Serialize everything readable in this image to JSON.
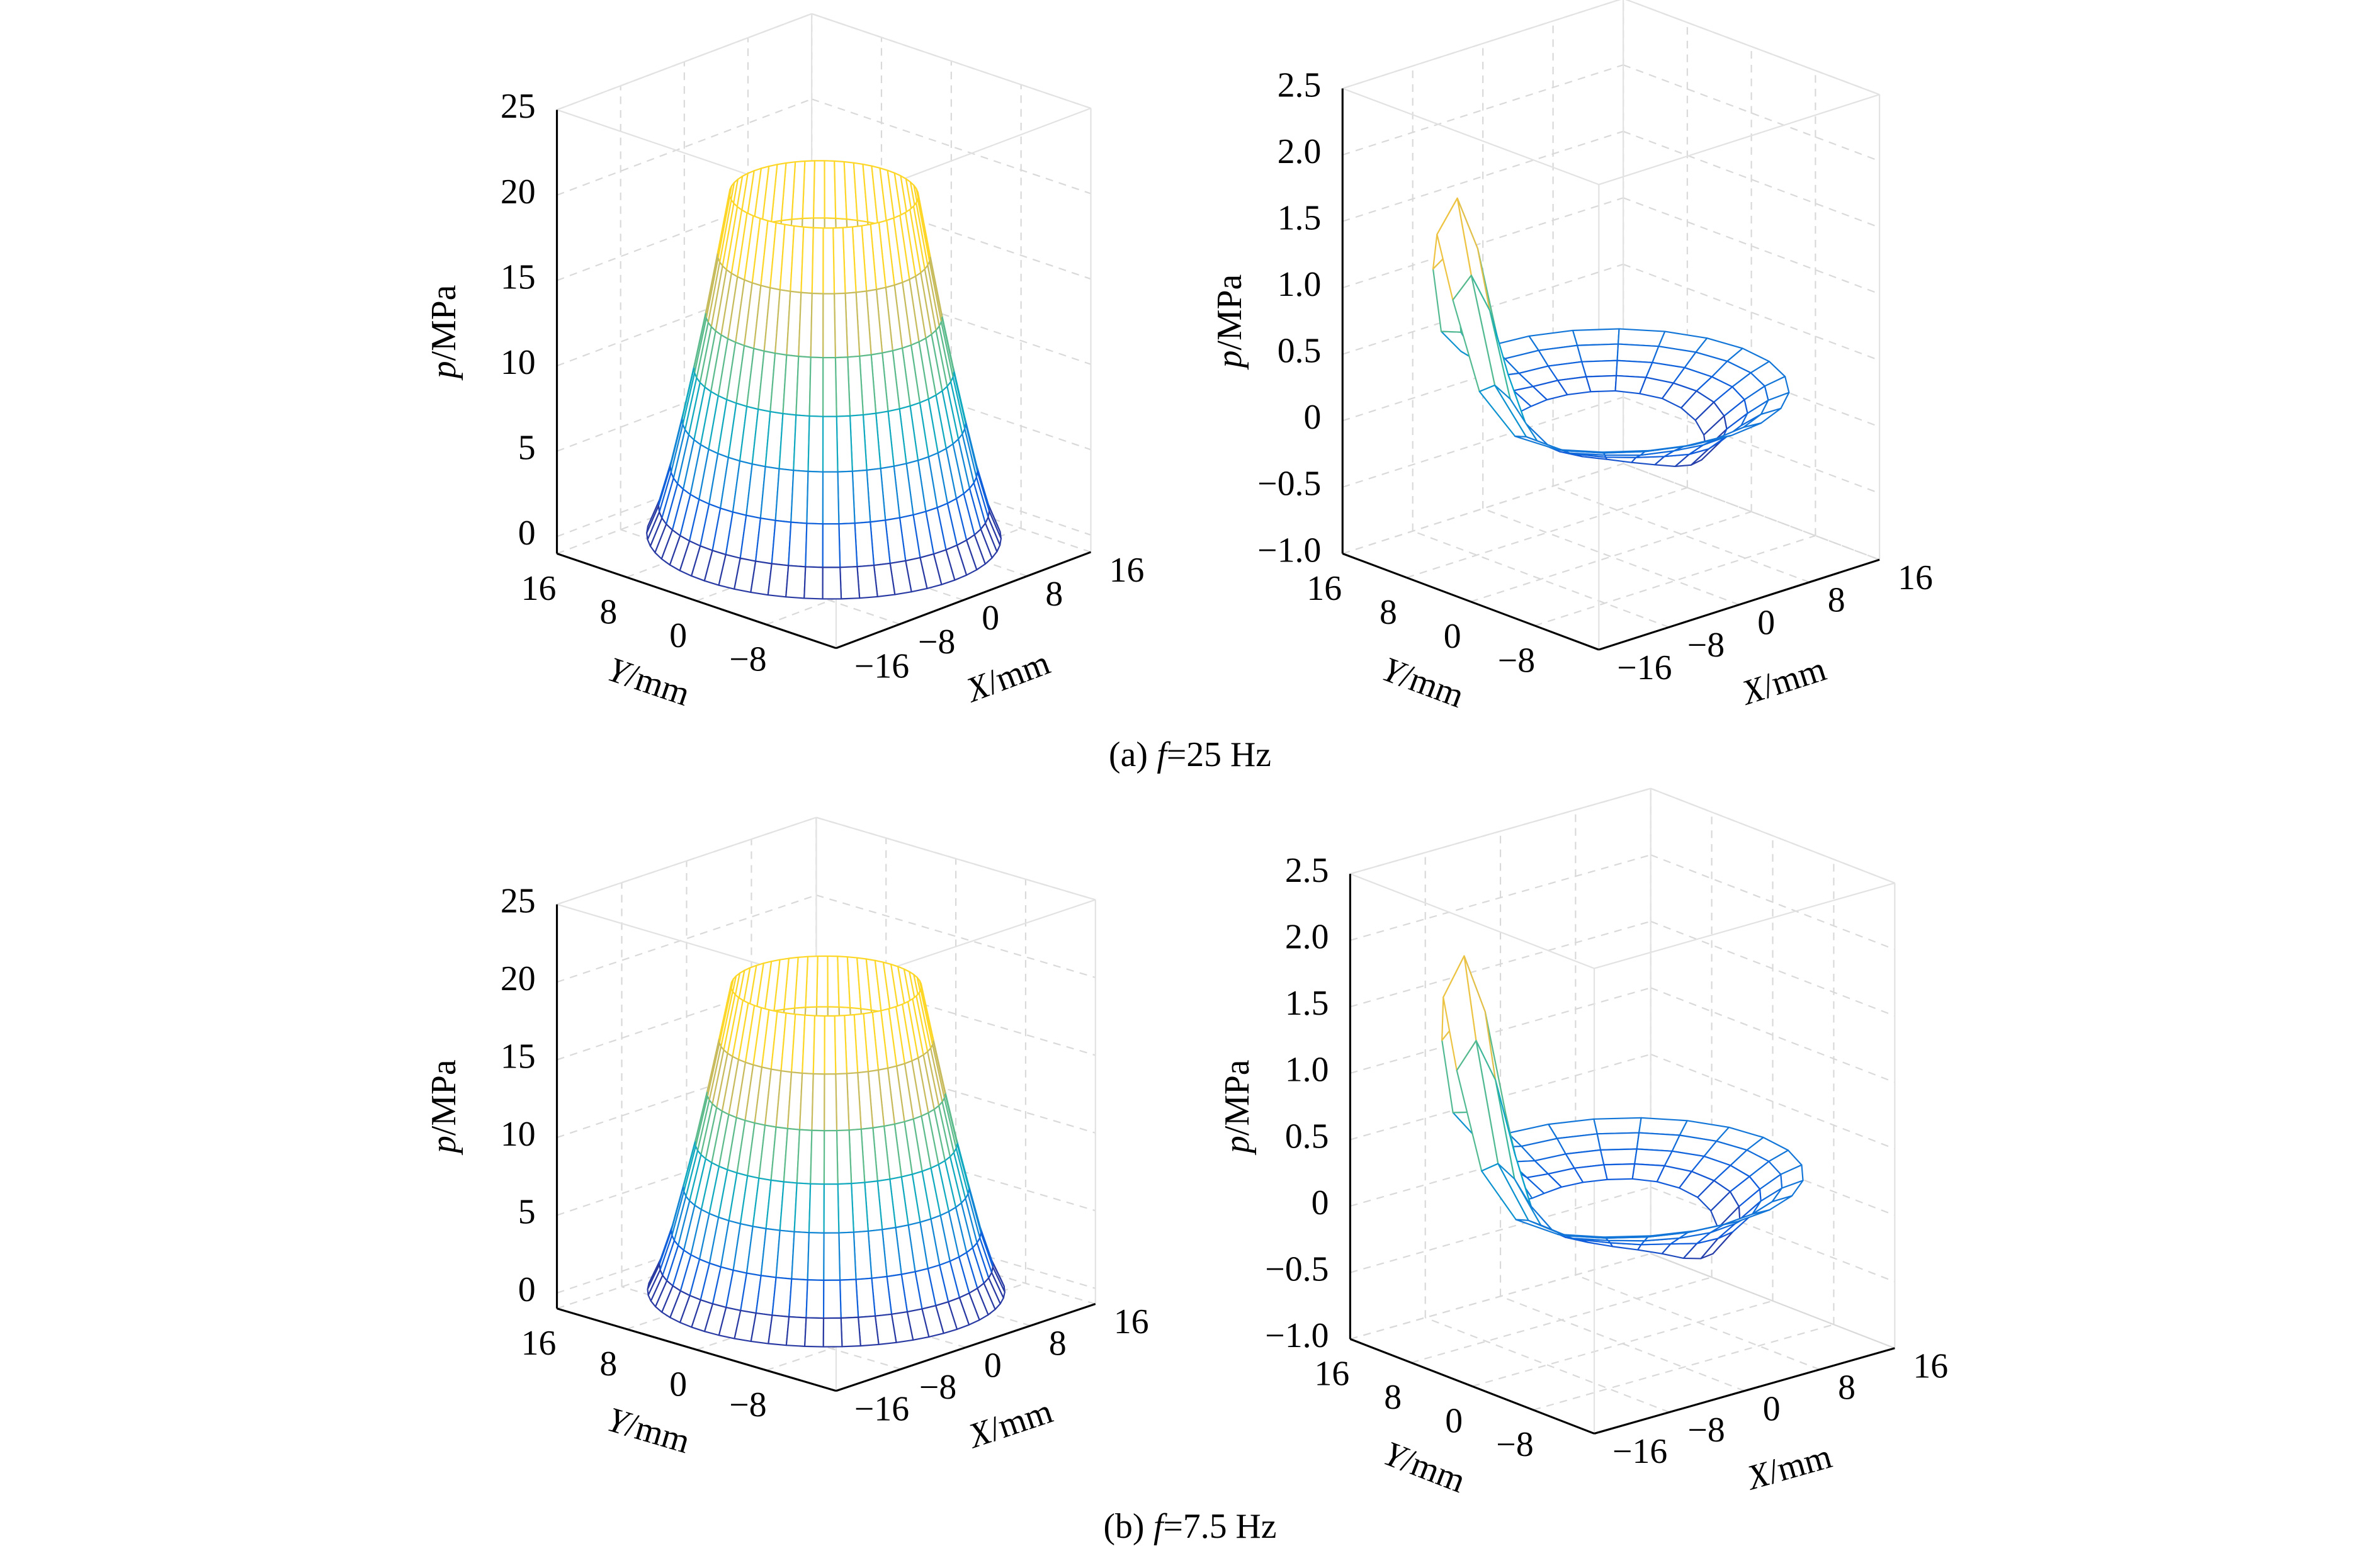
{
  "colormap": [
    "#352a87",
    "#0f5cdd",
    "#1481d6",
    "#06a4ca",
    "#2eb7a4",
    "#87bf77",
    "#d1bb59",
    "#fec832",
    "#f9fb0e"
  ],
  "captions": [
    {
      "label": "(a)",
      "var": "f",
      "text": "=25 Hz"
    },
    {
      "label": "(b)",
      "var": "f",
      "text": "=7.5 Hz"
    }
  ],
  "chart_data": [
    {
      "type": "surface",
      "xlabel": {
        "var": "X",
        "unit": "/mm"
      },
      "ylabel": {
        "var": "Y",
        "unit": "/mm"
      },
      "zlabel": {
        "var": "p",
        "unit": "/MPa"
      },
      "xlim": [
        -16,
        16
      ],
      "ylim": [
        -16,
        16
      ],
      "zlim": [
        -1,
        25
      ],
      "xticks": [
        {
          "value": -16,
          "label": "−16"
        },
        {
          "value": -8,
          "label": "−8"
        },
        0,
        8,
        16
      ],
      "yticks": [
        16,
        8,
        0,
        {
          "value": -8,
          "label": "−8"
        }
      ],
      "zticks": [
        0,
        5,
        10,
        15,
        20,
        25
      ],
      "grid": true,
      "radii": [
        8,
        9,
        10,
        11,
        12,
        13,
        14,
        15
      ],
      "values": [
        20,
        16.4,
        12.9,
        9.7,
        6.7,
        3.9,
        1.6,
        0
      ]
    },
    {
      "type": "surface",
      "xlabel": {
        "var": "X",
        "unit": "/mm"
      },
      "ylabel": {
        "var": "Y",
        "unit": "/mm"
      },
      "zlabel": {
        "var": "p",
        "unit": "/MPa"
      },
      "xlim": [
        -16,
        16
      ],
      "ylim": [
        -16,
        16
      ],
      "zlim": [
        -1,
        2.5
      ],
      "xticks": [
        {
          "value": -16,
          "label": "−16"
        },
        {
          "value": -8,
          "label": "−8"
        },
        0,
        8,
        16
      ],
      "yticks": [
        16,
        8,
        0,
        {
          "value": -8,
          "label": "−8"
        }
      ],
      "zticks": [
        {
          "value": -1,
          "label": "−1.0"
        },
        {
          "value": -0.5,
          "label": "−0.5"
        },
        0,
        0.5,
        {
          "value": 1,
          "label": "1.0"
        },
        1.5,
        {
          "value": 2,
          "label": "2.0"
        },
        2.5
      ],
      "grid": true,
      "radii": [
        8,
        9.75,
        11.5,
        13.25,
        15
      ],
      "angles": [
        0,
        15,
        30,
        45,
        60,
        75,
        90,
        105,
        120,
        135,
        150,
        165,
        180,
        195,
        210,
        225,
        240,
        255,
        270,
        285,
        300,
        315,
        330,
        345
      ],
      "values": [
        [
          -0.05,
          -0.02,
          -0.01,
          0,
          0,
          0,
          0,
          0,
          0.02,
          0.06,
          0.08,
          0.06,
          0.02,
          0,
          -0.01,
          -0.02,
          -0.05,
          -0.09,
          -0.14,
          -0.18,
          -0.2,
          -0.18,
          -0.14,
          -0.09
        ],
        [
          0.04,
          0.05,
          0.06,
          0.06,
          0.06,
          0.06,
          0.06,
          0.09,
          0.21,
          0.51,
          0.7,
          0.51,
          0.21,
          0.09,
          0.06,
          0.05,
          0.04,
          0.02,
          -0.01,
          -0.03,
          -0.04,
          -0.03,
          -0.01,
          0.02
        ],
        [
          0.11,
          0.12,
          0.12,
          0.12,
          0.12,
          0.12,
          0.12,
          0.17,
          0.43,
          1.02,
          1.4,
          1.02,
          0.43,
          0.17,
          0.12,
          0.12,
          0.11,
          0.11,
          0.1,
          0.09,
          0.09,
          0.09,
          0.1,
          0.11
        ],
        [
          0.19,
          0.19,
          0.19,
          0.19,
          0.19,
          0.19,
          0.19,
          0.25,
          0.57,
          1.31,
          1.79,
          1.31,
          0.57,
          0.25,
          0.19,
          0.19,
          0.19,
          0.19,
          0.19,
          0.19,
          0.19,
          0.19,
          0.19,
          0.19
        ],
        [
          0.25,
          0.25,
          0.25,
          0.25,
          0.25,
          0.25,
          0.25,
          0.3,
          0.56,
          1.15,
          1.53,
          1.15,
          0.56,
          0.3,
          0.25,
          0.25,
          0.25,
          0.25,
          0.25,
          0.25,
          0.25,
          0.25,
          0.25,
          0.25
        ]
      ]
    },
    {
      "type": "surface",
      "xlabel": {
        "var": "X",
        "unit": "/mm"
      },
      "ylabel": {
        "var": "Y",
        "unit": "/mm"
      },
      "zlabel": {
        "var": "p",
        "unit": "/MPa"
      },
      "xlim": [
        -16,
        16
      ],
      "ylim": [
        -16,
        16
      ],
      "zlim": [
        -1,
        25
      ],
      "xticks": [
        {
          "value": -16,
          "label": "−16"
        },
        {
          "value": -8,
          "label": "−8"
        },
        0,
        8,
        16
      ],
      "yticks": [
        16,
        8,
        0,
        {
          "value": -8,
          "label": "−8"
        }
      ],
      "zticks": [
        0,
        5,
        10,
        15,
        20,
        25
      ],
      "grid": true,
      "radii": [
        8,
        9,
        10,
        11,
        12,
        13,
        14,
        15
      ],
      "values": [
        19.6,
        16.1,
        12.7,
        9.5,
        6.6,
        3.8,
        1.6,
        0
      ]
    },
    {
      "type": "surface",
      "xlabel": {
        "var": "X",
        "unit": "/mm"
      },
      "ylabel": {
        "var": "Y",
        "unit": "/mm"
      },
      "zlabel": {
        "var": "p",
        "unit": "/MPa"
      },
      "xlim": [
        -16,
        16
      ],
      "ylim": [
        -16,
        16
      ],
      "zlim": [
        -1,
        2.5
      ],
      "xticks": [
        {
          "value": -16,
          "label": "−16"
        },
        {
          "value": -8,
          "label": "−8"
        },
        0,
        8,
        16
      ],
      "yticks": [
        16,
        8,
        0,
        {
          "value": -8,
          "label": "−8"
        }
      ],
      "zticks": [
        {
          "value": -1,
          "label": "−1.0"
        },
        {
          "value": -0.5,
          "label": "−0.5"
        },
        0,
        0.5,
        {
          "value": 1,
          "label": "1.0"
        },
        1.5,
        {
          "value": 2,
          "label": "2.0"
        },
        2.5
      ],
      "grid": true,
      "radii": [
        8,
        9.75,
        11.5,
        13.25,
        15
      ],
      "angles": [
        0,
        15,
        30,
        45,
        60,
        75,
        90,
        105,
        120,
        135,
        150,
        165,
        180,
        195,
        210,
        225,
        240,
        255,
        270,
        285,
        300,
        315,
        330,
        345
      ],
      "values": [
        [
          -0.06,
          -0.03,
          -0.01,
          0,
          0,
          0,
          0,
          0,
          0.02,
          0.07,
          0.09,
          0.07,
          0.02,
          0,
          -0.01,
          -0.03,
          -0.06,
          -0.11,
          -0.18,
          -0.23,
          -0.25,
          -0.23,
          -0.18,
          -0.11
        ],
        [
          0.03,
          0.05,
          0.06,
          0.06,
          0.06,
          0.06,
          0.06,
          0.09,
          0.23,
          0.56,
          0.78,
          0.56,
          0.23,
          0.09,
          0.06,
          0.05,
          0.03,
          0.01,
          -0.03,
          -0.05,
          -0.07,
          -0.05,
          -0.03,
          0.01
        ],
        [
          0.11,
          0.12,
          0.12,
          0.12,
          0.12,
          0.12,
          0.12,
          0.18,
          0.47,
          1.14,
          1.57,
          1.14,
          0.47,
          0.18,
          0.12,
          0.12,
          0.11,
          0.1,
          0.09,
          0.09,
          0.08,
          0.09,
          0.09,
          0.1
        ],
        [
          0.19,
          0.19,
          0.19,
          0.19,
          0.19,
          0.19,
          0.19,
          0.26,
          0.62,
          1.46,
          2,
          1.46,
          0.62,
          0.26,
          0.19,
          0.19,
          0.19,
          0.19,
          0.19,
          0.19,
          0.19,
          0.19,
          0.19,
          0.19
        ],
        [
          0.25,
          0.25,
          0.25,
          0.25,
          0.25,
          0.25,
          0.25,
          0.31,
          0.6,
          1.26,
          1.7,
          1.26,
          0.6,
          0.31,
          0.25,
          0.25,
          0.25,
          0.25,
          0.25,
          0.25,
          0.25,
          0.25,
          0.25,
          0.25
        ]
      ]
    }
  ]
}
